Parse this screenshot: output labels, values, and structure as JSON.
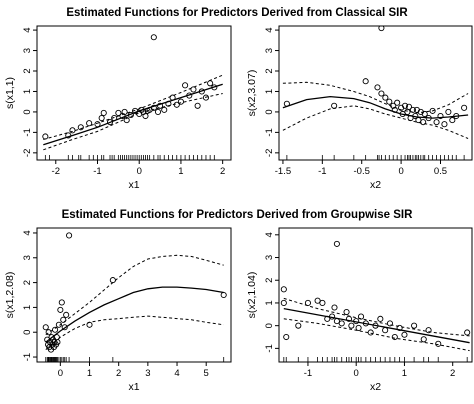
{
  "section_titles": [
    "Estimated Functions for Predictors Derived from Classical SIR",
    "Estimated Functions for Predictors Derived from Groupwise SIR"
  ],
  "chart_data": [
    {
      "type": "scatter",
      "title": "",
      "xlabel": "x1",
      "ylabel": "s(x1,1)",
      "xlim": [
        -2.45,
        2.2
      ],
      "ylim": [
        -2.35,
        4.2
      ],
      "xticks": [
        -2,
        -1,
        0,
        1,
        2
      ],
      "yticks": [
        -2,
        -1,
        0,
        1,
        2,
        3,
        4
      ],
      "points": [
        [
          -2.25,
          -1.2
        ],
        [
          -1.7,
          -1.15
        ],
        [
          -1.6,
          -0.9
        ],
        [
          -1.4,
          -0.75
        ],
        [
          -1.2,
          -0.55
        ],
        [
          -1.0,
          -0.6
        ],
        [
          -0.9,
          -0.3
        ],
        [
          -0.85,
          -0.05
        ],
        [
          -0.7,
          -0.5
        ],
        [
          -0.6,
          -0.3
        ],
        [
          -0.5,
          -0.05
        ],
        [
          -0.4,
          -0.2
        ],
        [
          -0.35,
          0.0
        ],
        [
          -0.3,
          -0.4
        ],
        [
          -0.2,
          -0.15
        ],
        [
          -0.1,
          0.05
        ],
        [
          0.0,
          -0.1
        ],
        [
          0.05,
          0.1
        ],
        [
          0.1,
          0.0
        ],
        [
          0.15,
          -0.2
        ],
        [
          0.2,
          0.05
        ],
        [
          0.25,
          0.1
        ],
        [
          0.35,
          0.2
        ],
        [
          0.45,
          0.0
        ],
        [
          0.5,
          0.3
        ],
        [
          0.6,
          0.1
        ],
        [
          0.7,
          0.4
        ],
        [
          0.8,
          0.7
        ],
        [
          0.9,
          0.35
        ],
        [
          1.0,
          0.5
        ],
        [
          1.1,
          1.3
        ],
        [
          1.2,
          0.8
        ],
        [
          1.3,
          1.1
        ],
        [
          1.4,
          0.3
        ],
        [
          1.5,
          1.0
        ],
        [
          1.6,
          0.7
        ],
        [
          1.7,
          1.4
        ],
        [
          1.8,
          1.2
        ],
        [
          0.35,
          3.65
        ]
      ],
      "curves": [
        {
          "role": "estimate",
          "style": "solid",
          "x": [
            -2.3,
            -1.6,
            -1,
            0,
            1,
            2
          ],
          "y": [
            -1.6,
            -1.15,
            -0.75,
            0.05,
            0.7,
            1.35
          ]
        },
        {
          "role": "upper band",
          "style": "dashed",
          "x": [
            -2.3,
            -1.6,
            -1,
            0,
            1,
            2
          ],
          "y": [
            -1.35,
            -0.95,
            -0.55,
            0.15,
            0.95,
            1.8
          ]
        },
        {
          "role": "lower band",
          "style": "dashed",
          "x": [
            -2.3,
            -1.6,
            -1,
            0,
            1,
            2
          ],
          "y": [
            -1.85,
            -1.35,
            -0.95,
            -0.05,
            0.45,
            0.9
          ]
        }
      ],
      "rug": [
        -2.25,
        -2.15,
        -1.7,
        -1.6,
        -1.45,
        -1.4,
        -1.2,
        -1.1,
        -1.0,
        -0.9,
        -0.85,
        -0.7,
        -0.65,
        -0.6,
        -0.5,
        -0.45,
        -0.4,
        -0.35,
        -0.3,
        -0.25,
        -0.2,
        -0.15,
        -0.1,
        -0.05,
        0.0,
        0.05,
        0.1,
        0.15,
        0.2,
        0.25,
        0.35,
        0.45,
        0.5,
        0.6,
        0.7,
        0.8,
        0.9,
        1.0,
        1.1,
        1.2,
        1.3,
        1.4,
        1.5,
        1.6,
        1.7,
        1.8
      ]
    },
    {
      "type": "scatter",
      "title": "",
      "xlabel": "x2",
      "ylabel": "s(x2,3.07)",
      "xlim": [
        -1.55,
        0.9
      ],
      "ylim": [
        -2.35,
        4.2
      ],
      "xticks": [
        -1.5,
        -1.0,
        -0.5,
        0.0,
        0.5
      ],
      "yticks": [
        -2,
        -1,
        0,
        1,
        2,
        3,
        4
      ],
      "points": [
        [
          -1.45,
          0.4
        ],
        [
          -0.85,
          0.3
        ],
        [
          -0.45,
          1.5
        ],
        [
          -0.3,
          1.2
        ],
        [
          -0.25,
          0.9
        ],
        [
          -0.2,
          0.7
        ],
        [
          -0.15,
          0.5
        ],
        [
          -0.1,
          0.3
        ],
        [
          -0.08,
          0.1
        ],
        [
          -0.05,
          0.45
        ],
        [
          0.0,
          0.2
        ],
        [
          0.02,
          -0.1
        ],
        [
          0.05,
          0.3
        ],
        [
          0.08,
          0.0
        ],
        [
          0.1,
          0.25
        ],
        [
          0.12,
          -0.3
        ],
        [
          0.15,
          0.1
        ],
        [
          0.18,
          -0.2
        ],
        [
          0.2,
          0.1
        ],
        [
          0.22,
          -0.4
        ],
        [
          0.25,
          0.0
        ],
        [
          0.28,
          -0.5
        ],
        [
          0.3,
          -0.1
        ],
        [
          0.35,
          -0.3
        ],
        [
          0.4,
          0.05
        ],
        [
          0.45,
          -0.5
        ],
        [
          0.5,
          -0.2
        ],
        [
          0.55,
          -0.6
        ],
        [
          0.6,
          0.0
        ],
        [
          0.65,
          -0.4
        ],
        [
          0.7,
          -0.2
        ],
        [
          0.8,
          0.2
        ],
        [
          -0.25,
          4.1
        ]
      ],
      "curves": [
        {
          "role": "estimate",
          "style": "solid",
          "x": [
            -1.5,
            -1.2,
            -0.9,
            -0.6,
            -0.4,
            -0.2,
            0,
            0.2,
            0.4,
            0.6,
            0.85
          ],
          "y": [
            0.2,
            0.6,
            0.75,
            0.65,
            0.45,
            0.15,
            -0.1,
            -0.25,
            -0.3,
            -0.25,
            -0.15
          ]
        },
        {
          "role": "upper band",
          "style": "dashed",
          "x": [
            -1.5,
            -1.2,
            -0.9,
            -0.6,
            -0.4,
            -0.2,
            0,
            0.2,
            0.4,
            0.6,
            0.85
          ],
          "y": [
            1.4,
            1.45,
            1.3,
            1.0,
            0.75,
            0.4,
            0.1,
            -0.05,
            0.05,
            0.35,
            0.9
          ]
        },
        {
          "role": "lower band",
          "style": "dashed",
          "x": [
            -1.5,
            -1.2,
            -0.9,
            -0.6,
            -0.4,
            -0.2,
            0,
            0.2,
            0.4,
            0.6,
            0.85
          ],
          "y": [
            -0.9,
            -0.3,
            0.15,
            0.3,
            0.15,
            -0.1,
            -0.3,
            -0.5,
            -0.65,
            -0.9,
            -1.3
          ]
        }
      ],
      "rug": [
        -1.45,
        -1.0,
        -0.85,
        -0.6,
        -0.45,
        -0.3,
        -0.28,
        -0.25,
        -0.2,
        -0.15,
        -0.1,
        -0.05,
        0.0,
        0.05,
        0.08,
        0.1,
        0.12,
        0.15,
        0.18,
        0.2,
        0.22,
        0.25,
        0.28,
        0.3,
        0.35,
        0.4,
        0.45,
        0.5,
        0.55,
        0.6,
        0.65,
        0.7,
        0.8
      ]
    },
    {
      "type": "scatter",
      "title": "",
      "xlabel": "x1",
      "ylabel": "s(x1,2.08)",
      "xlim": [
        -0.8,
        5.85
      ],
      "ylim": [
        -1.2,
        4.2
      ],
      "xticks": [
        0,
        1,
        2,
        3,
        4,
        5
      ],
      "yticks": [
        -1,
        0,
        1,
        2,
        3,
        4
      ],
      "points": [
        [
          -0.5,
          0.2
        ],
        [
          -0.45,
          -0.3
        ],
        [
          -0.42,
          -0.5
        ],
        [
          -0.4,
          0.0
        ],
        [
          -0.38,
          -0.6
        ],
        [
          -0.35,
          -0.4
        ],
        [
          -0.32,
          -0.7
        ],
        [
          -0.3,
          -0.2
        ],
        [
          -0.28,
          -0.5
        ],
        [
          -0.25,
          -0.3
        ],
        [
          -0.22,
          -0.6
        ],
        [
          -0.2,
          -0.4
        ],
        [
          -0.18,
          0.1
        ],
        [
          -0.15,
          -0.5
        ],
        [
          -0.12,
          -0.2
        ],
        [
          -0.1,
          -0.4
        ],
        [
          -0.05,
          0.3
        ],
        [
          0.0,
          0.9
        ],
        [
          0.05,
          1.2
        ],
        [
          0.1,
          0.5
        ],
        [
          0.15,
          0.2
        ],
        [
          0.2,
          0.7
        ],
        [
          0.3,
          3.9
        ],
        [
          1.0,
          0.3
        ],
        [
          1.8,
          2.1
        ],
        [
          5.6,
          1.5
        ]
      ],
      "curves": [
        {
          "role": "estimate",
          "style": "solid",
          "x": [
            -0.5,
            0,
            0.5,
            1,
            1.5,
            2,
            2.5,
            3,
            3.5,
            4,
            4.5,
            5,
            5.6
          ],
          "y": [
            -0.4,
            0.05,
            0.45,
            0.8,
            1.1,
            1.35,
            1.6,
            1.75,
            1.82,
            1.82,
            1.78,
            1.72,
            1.6
          ]
        },
        {
          "role": "upper band",
          "style": "dashed",
          "x": [
            -0.5,
            0,
            0.5,
            1,
            1.5,
            2,
            2.5,
            3,
            3.5,
            4,
            4.5,
            5,
            5.6
          ],
          "y": [
            -0.1,
            0.3,
            0.75,
            1.2,
            1.7,
            2.2,
            2.65,
            2.95,
            3.05,
            3.1,
            3.05,
            2.9,
            2.7
          ]
        },
        {
          "role": "lower band",
          "style": "dashed",
          "x": [
            -0.5,
            0,
            0.5,
            1,
            1.5,
            2,
            2.5,
            3,
            3.5,
            4,
            4.5,
            5,
            5.6
          ],
          "y": [
            -0.7,
            -0.2,
            0.15,
            0.4,
            0.5,
            0.55,
            0.6,
            0.65,
            0.6,
            0.55,
            0.5,
            0.4,
            0.3
          ]
        }
      ],
      "rug": [
        -0.5,
        -0.45,
        -0.42,
        -0.4,
        -0.38,
        -0.35,
        -0.32,
        -0.3,
        -0.28,
        -0.25,
        -0.22,
        -0.2,
        -0.18,
        -0.15,
        -0.12,
        -0.1,
        -0.05,
        0.0,
        0.05,
        0.1,
        0.15,
        0.2,
        0.3,
        1.0,
        1.8,
        5.6
      ]
    },
    {
      "type": "scatter",
      "title": "",
      "xlabel": "x2",
      "ylabel": "s(x2,1.04)",
      "xlim": [
        -1.6,
        2.4
      ],
      "ylim": [
        -1.6,
        4.3
      ],
      "xticks": [
        -1,
        0,
        1,
        2
      ],
      "yticks": [
        -1,
        0,
        1,
        2,
        3,
        4
      ],
      "points": [
        [
          -1.5,
          1.6
        ],
        [
          -1.5,
          1.0
        ],
        [
          -1.45,
          -0.5
        ],
        [
          -1.2,
          0.0
        ],
        [
          -1.0,
          1.0
        ],
        [
          -0.8,
          1.1
        ],
        [
          -0.7,
          1.0
        ],
        [
          -0.6,
          0.3
        ],
        [
          -0.5,
          0.4
        ],
        [
          -0.45,
          0.8
        ],
        [
          -0.4,
          0.2
        ],
        [
          -0.3,
          0.1
        ],
        [
          -0.2,
          0.6
        ],
        [
          -0.15,
          0.3
        ],
        [
          -0.1,
          0.0
        ],
        [
          0.0,
          0.2
        ],
        [
          0.05,
          -0.1
        ],
        [
          0.1,
          0.4
        ],
        [
          0.2,
          0.1
        ],
        [
          0.3,
          -0.3
        ],
        [
          0.4,
          0.0
        ],
        [
          0.5,
          0.3
        ],
        [
          0.6,
          -0.2
        ],
        [
          0.7,
          0.1
        ],
        [
          0.8,
          -0.5
        ],
        [
          0.9,
          -0.1
        ],
        [
          1.0,
          -0.4
        ],
        [
          1.2,
          0.0
        ],
        [
          1.4,
          -0.6
        ],
        [
          1.5,
          -0.2
        ],
        [
          1.7,
          -0.8
        ],
        [
          2.3,
          -0.3
        ],
        [
          -0.4,
          3.6
        ]
      ],
      "curves": [
        {
          "role": "estimate",
          "style": "solid",
          "x": [
            -1.5,
            2.35
          ],
          "y": [
            0.75,
            -0.75
          ]
        },
        {
          "role": "upper band",
          "style": "dashed",
          "x": [
            -1.5,
            -0.8,
            0,
            0.8,
            1.6,
            2.35
          ],
          "y": [
            1.2,
            0.75,
            0.35,
            0.0,
            -0.3,
            -0.45
          ]
        },
        {
          "role": "lower band",
          "style": "dashed",
          "x": [
            -1.5,
            -0.8,
            0,
            0.8,
            1.6,
            2.35
          ],
          "y": [
            0.3,
            0.1,
            -0.2,
            -0.55,
            -0.8,
            -1.1
          ]
        }
      ],
      "rug": [
        -1.5,
        -1.45,
        -1.2,
        -1.0,
        -0.8,
        -0.7,
        -0.6,
        -0.5,
        -0.45,
        -0.4,
        -0.3,
        -0.2,
        -0.15,
        -0.1,
        0.0,
        0.05,
        0.1,
        0.2,
        0.3,
        0.4,
        0.5,
        0.6,
        0.7,
        0.8,
        0.9,
        1.0,
        1.2,
        1.4,
        1.5,
        1.7,
        2.3
      ]
    }
  ]
}
